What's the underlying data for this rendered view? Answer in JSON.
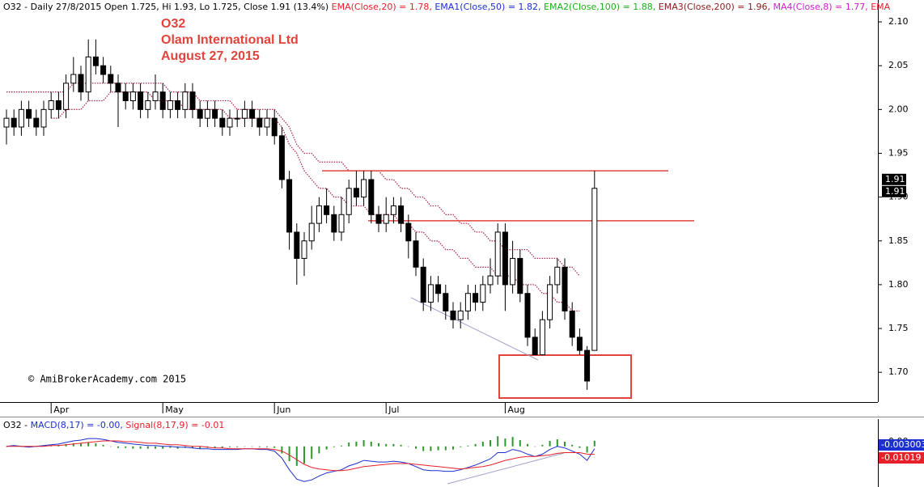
{
  "chart_data": [
    {
      "type": "candlestick",
      "header": [
        {
          "text": "O32 - Daily 27/8/2015 Open 1.725, Hi 1.93, Lo 1.725, Close 1.91 (13.4%) ",
          "color": "#000000"
        },
        {
          "text": "EMA(Close,20) = 1.78, ",
          "color": "#e8202a"
        },
        {
          "text": "EMA1(Close,50) = 1.82, ",
          "color": "#1c2fd0"
        },
        {
          "text": "EMA2(Close,100) = 1.88, ",
          "color": "#19b219"
        },
        {
          "text": "EMA3(Close,200) = 1.96, ",
          "color": "#8b1a1a"
        },
        {
          "text": "MA4(Close,8) = 1.77, ",
          "color": "#d21bd2"
        },
        {
          "text": "EMA",
          "color": "#e8202a"
        }
      ],
      "annotations": [
        "O32",
        "Olam International Ltd",
        "August 27, 2015"
      ],
      "watermark": "©  AmiBrokerAcademy.com  2015",
      "categories": [
        null,
        null,
        null,
        null,
        null,
        null,
        "Apr",
        null,
        null,
        null,
        null,
        null,
        null,
        null,
        null,
        null,
        null,
        null,
        null,
        null,
        null,
        "May",
        null,
        null,
        null,
        null,
        null,
        null,
        null,
        null,
        null,
        null,
        null,
        null,
        null,
        null,
        "Jun",
        null,
        null,
        null,
        null,
        null,
        null,
        null,
        null,
        null,
        null,
        null,
        null,
        null,
        null,
        "Jul",
        null,
        null,
        null,
        null,
        null,
        null,
        null,
        null,
        null,
        null,
        null,
        null,
        null,
        null,
        null,
        "Aug",
        null,
        null,
        null,
        null,
        null,
        null,
        null,
        null,
        null,
        null,
        null,
        null
      ],
      "open": [
        1.98,
        1.99,
        1.98,
        2.0,
        1.99,
        1.98,
        2.0,
        2.01,
        2.0,
        2.03,
        2.04,
        2.02,
        2.06,
        2.05,
        2.04,
        2.03,
        2.02,
        2.01,
        2.02,
        2.0,
        2.01,
        2.02,
        2.0,
        2.01,
        2.0,
        2.02,
        2.0,
        1.99,
        2.0,
        1.99,
        1.98,
        1.99,
        1.99,
        2.0,
        1.99,
        1.98,
        1.99,
        1.97,
        1.92,
        1.86,
        1.83,
        1.85,
        1.87,
        1.89,
        1.88,
        1.86,
        1.88,
        1.91,
        1.9,
        1.92,
        1.88,
        1.87,
        1.88,
        1.89,
        1.87,
        1.85,
        1.82,
        1.78,
        1.8,
        1.79,
        1.77,
        1.76,
        1.77,
        1.79,
        1.78,
        1.8,
        1.81,
        1.86,
        1.8,
        1.83,
        1.79,
        1.74,
        1.72,
        1.76,
        1.8,
        1.82,
        1.77,
        1.74,
        1.725,
        1.725
      ],
      "high": [
        2.0,
        2.0,
        2.01,
        2.01,
        2.0,
        2.01,
        2.02,
        2.02,
        2.04,
        2.06,
        2.05,
        2.08,
        2.08,
        2.06,
        2.05,
        2.04,
        2.03,
        2.03,
        2.03,
        2.02,
        2.04,
        2.03,
        2.02,
        2.02,
        2.03,
        2.03,
        2.01,
        2.01,
        2.01,
        2.0,
        2.0,
        2.0,
        2.01,
        2.01,
        2.0,
        2.0,
        2.0,
        1.98,
        1.93,
        1.87,
        1.86,
        1.89,
        1.9,
        1.91,
        1.89,
        1.9,
        1.92,
        1.93,
        1.93,
        1.93,
        1.89,
        1.9,
        1.9,
        1.9,
        1.88,
        1.86,
        1.83,
        1.81,
        1.81,
        1.8,
        1.78,
        1.78,
        1.8,
        1.8,
        1.81,
        1.83,
        1.87,
        1.87,
        1.85,
        1.84,
        1.8,
        1.75,
        1.77,
        1.81,
        1.83,
        1.83,
        1.78,
        1.75,
        1.73,
        1.93
      ],
      "low": [
        1.96,
        1.97,
        1.97,
        1.98,
        1.97,
        1.97,
        1.99,
        1.99,
        1.99,
        2.02,
        2.01,
        2.01,
        2.04,
        2.03,
        2.02,
        1.98,
        2.0,
        2.0,
        1.99,
        1.99,
        2.0,
        1.99,
        1.99,
        1.99,
        1.99,
        1.99,
        1.98,
        1.98,
        1.98,
        1.97,
        1.97,
        1.98,
        1.98,
        1.98,
        1.97,
        1.97,
        1.96,
        1.91,
        1.84,
        1.8,
        1.81,
        1.84,
        1.86,
        1.87,
        1.85,
        1.85,
        1.87,
        1.89,
        1.89,
        1.87,
        1.86,
        1.86,
        1.87,
        1.86,
        1.83,
        1.81,
        1.77,
        1.77,
        1.78,
        1.76,
        1.75,
        1.75,
        1.76,
        1.77,
        1.77,
        1.79,
        1.8,
        1.77,
        1.79,
        1.78,
        1.73,
        1.72,
        1.72,
        1.75,
        1.79,
        1.76,
        1.73,
        1.72,
        1.68,
        1.725
      ],
      "close": [
        1.99,
        1.98,
        2.0,
        1.99,
        1.98,
        2.0,
        2.01,
        2.0,
        2.03,
        2.04,
        2.02,
        2.06,
        2.05,
        2.04,
        2.03,
        2.02,
        2.01,
        2.02,
        2.0,
        2.01,
        2.02,
        2.0,
        2.01,
        2.0,
        2.02,
        2.0,
        1.99,
        2.0,
        1.99,
        1.98,
        1.99,
        1.99,
        2.0,
        1.99,
        1.98,
        1.99,
        1.97,
        1.92,
        1.86,
        1.83,
        1.85,
        1.87,
        1.89,
        1.88,
        1.86,
        1.88,
        1.91,
        1.9,
        1.92,
        1.88,
        1.87,
        1.88,
        1.89,
        1.87,
        1.85,
        1.82,
        1.78,
        1.8,
        1.79,
        1.77,
        1.76,
        1.77,
        1.79,
        1.78,
        1.8,
        1.81,
        1.86,
        1.8,
        1.83,
        1.79,
        1.74,
        1.72,
        1.76,
        1.8,
        1.82,
        1.77,
        1.74,
        1.725,
        1.69,
        1.91
      ],
      "lines": [
        {
          "color": "#b03050",
          "values": [
            2.02,
            2.02,
            2.02,
            2.02,
            2.02,
            2.02,
            2.02,
            2.02,
            2.02,
            2.03,
            2.03,
            2.03,
            2.03,
            2.03,
            2.03,
            2.03,
            2.03,
            2.03,
            2.03,
            2.03,
            2.03,
            2.03,
            2.02,
            2.02,
            2.02,
            2.02,
            2.01,
            2.01,
            2.01,
            2.01,
            2.01,
            2.0,
            2.0,
            2.0,
            2.0,
            2.0,
            2.0,
            1.99,
            1.98,
            1.96,
            1.95,
            1.95,
            1.94,
            1.94,
            1.94,
            1.94,
            1.93,
            1.93,
            1.93,
            1.93,
            1.93,
            1.92,
            1.92,
            1.91,
            1.91,
            1.9,
            1.9,
            1.89,
            1.89,
            1.88,
            1.88,
            1.87,
            1.87,
            1.86,
            1.86,
            1.85,
            1.85,
            1.84,
            1.84,
            1.84,
            1.84,
            1.83,
            1.83,
            1.83,
            1.83,
            1.82,
            1.82,
            1.81,
            null,
            null
          ]
        },
        {
          "color": "#b03050",
          "values": [
            null,
            null,
            null,
            null,
            null,
            null,
            1.99,
            1.99,
            2.0,
            2.0,
            2.0,
            2.01,
            2.01,
            2.01,
            2.02,
            2.02,
            2.02,
            2.02,
            2.02,
            2.02,
            2.01,
            2.01,
            2.01,
            2.01,
            2.0,
            2.0,
            2.0,
            2.0,
            2.0,
            2.0,
            1.99,
            1.99,
            1.99,
            1.99,
            1.99,
            1.99,
            1.99,
            1.98,
            1.96,
            1.95,
            1.93,
            1.92,
            1.91,
            1.91,
            1.9,
            1.9,
            1.89,
            1.89,
            1.89,
            1.88,
            1.88,
            1.88,
            1.88,
            1.87,
            1.87,
            1.86,
            1.86,
            1.85,
            1.85,
            1.84,
            1.84,
            1.83,
            1.83,
            1.82,
            1.82,
            1.82,
            1.81,
            1.81,
            1.81,
            1.8,
            1.8,
            1.8,
            1.79,
            1.79,
            1.78,
            1.78,
            1.77,
            1.77,
            null,
            null
          ]
        }
      ],
      "hlines": [
        {
          "value": 1.93,
          "color": "#e0443c"
        },
        {
          "value": 1.873,
          "color": "#e0443c"
        }
      ],
      "last_price": 1.91,
      "ylim": [
        1.666,
        2.125
      ],
      "yticks": [
        {
          "value": 1.7,
          "label": "1.70"
        },
        1.75,
        {
          "value": 1.8,
          "label": "1.80"
        },
        1.85,
        {
          "value": 1.9,
          "label": "1.90"
        },
        1.95,
        {
          "value": 2.0,
          "label": "2.00"
        },
        2.05,
        {
          "value": 2.1,
          "label": "2.10"
        }
      ],
      "up_color": "#ffffff",
      "down_color": "#000000"
    },
    {
      "type": "macd",
      "legend": [
        {
          "text": "O32 - ",
          "color": "#000000"
        },
        {
          "text": "MACD(8,17) = -0.00, ",
          "color": "#1c2fd0"
        },
        {
          "text": "Signal(8,17,9) = -0.01",
          "color": "#e8202a"
        }
      ],
      "histogram": {
        "color": "#2a9a2a",
        "values": [
          0.0,
          0.001,
          0.0,
          -0.001,
          0.0,
          0.001,
          0.001,
          0.002,
          0.003,
          0.004,
          0.004,
          0.005,
          0.004,
          0.002,
          0.0,
          -0.002,
          -0.002,
          -0.003,
          -0.003,
          -0.003,
          -0.003,
          -0.003,
          -0.002,
          -0.003,
          -0.002,
          -0.002,
          -0.003,
          -0.002,
          -0.002,
          -0.002,
          -0.001,
          -0.001,
          0.0,
          0.0,
          -0.001,
          -0.001,
          -0.002,
          -0.009,
          -0.019,
          -0.025,
          -0.022,
          -0.016,
          -0.009,
          -0.004,
          -0.001,
          0.001,
          0.005,
          0.006,
          0.008,
          0.006,
          0.004,
          0.003,
          0.003,
          0.002,
          0.0,
          -0.003,
          -0.006,
          -0.006,
          -0.005,
          -0.005,
          -0.004,
          -0.001,
          0.001,
          0.003,
          0.006,
          0.008,
          0.013,
          0.01,
          0.012,
          0.008,
          0.003,
          0.0,
          0.002,
          0.007,
          0.009,
          0.006,
          0.002,
          -0.002,
          -0.008,
          0.007187
        ]
      },
      "series": [
        {
          "color": "#1c2fd0",
          "values": [
            0.0,
            0.001,
            0.0,
            -0.001,
            0.0,
            0.001,
            0.002,
            0.003,
            0.005,
            0.007,
            0.008,
            0.01,
            0.01,
            0.009,
            0.007,
            0.005,
            0.004,
            0.003,
            0.002,
            0.001,
            0.001,
            0.0,
            0.0,
            -0.001,
            -0.001,
            -0.002,
            -0.003,
            -0.003,
            -0.004,
            -0.004,
            -0.004,
            -0.004,
            -0.003,
            -0.003,
            -0.004,
            -0.004,
            -0.006,
            -0.015,
            -0.03,
            -0.042,
            -0.045,
            -0.043,
            -0.038,
            -0.034,
            -0.032,
            -0.03,
            -0.025,
            -0.022,
            -0.018,
            -0.019,
            -0.02,
            -0.02,
            -0.019,
            -0.02,
            -0.022,
            -0.026,
            -0.03,
            -0.031,
            -0.031,
            -0.032,
            -0.032,
            -0.03,
            -0.027,
            -0.024,
            -0.02,
            -0.016,
            -0.008,
            -0.008,
            -0.004,
            -0.006,
            -0.01,
            -0.013,
            -0.01,
            -0.004,
            0.0,
            -0.002,
            -0.006,
            -0.01,
            -0.018,
            -0.003003
          ]
        },
        {
          "color": "#e8202a",
          "values": [
            0.0,
            0.0,
            0.0,
            0.0,
            0.0,
            0.0,
            0.001,
            0.001,
            0.002,
            0.003,
            0.004,
            0.005,
            0.006,
            0.007,
            0.007,
            0.007,
            0.006,
            0.006,
            0.005,
            0.004,
            0.004,
            0.003,
            0.002,
            0.002,
            0.001,
            0.0,
            0.0,
            -0.001,
            -0.002,
            -0.002,
            -0.003,
            -0.003,
            -0.003,
            -0.003,
            -0.003,
            -0.003,
            -0.004,
            -0.006,
            -0.011,
            -0.017,
            -0.023,
            -0.027,
            -0.029,
            -0.03,
            -0.031,
            -0.031,
            -0.03,
            -0.028,
            -0.026,
            -0.025,
            -0.024,
            -0.023,
            -0.022,
            -0.022,
            -0.022,
            -0.023,
            -0.024,
            -0.025,
            -0.026,
            -0.027,
            -0.028,
            -0.029,
            -0.028,
            -0.027,
            -0.026,
            -0.024,
            -0.021,
            -0.018,
            -0.016,
            -0.014,
            -0.013,
            -0.013,
            -0.012,
            -0.011,
            -0.009,
            -0.008,
            -0.008,
            -0.008,
            -0.01,
            -0.01019
          ]
        }
      ],
      "ylim": [
        -0.05,
        0.035
      ],
      "yticks": [
        {
          "value": 0,
          "label": "0.00"
        }
      ]
    }
  ]
}
